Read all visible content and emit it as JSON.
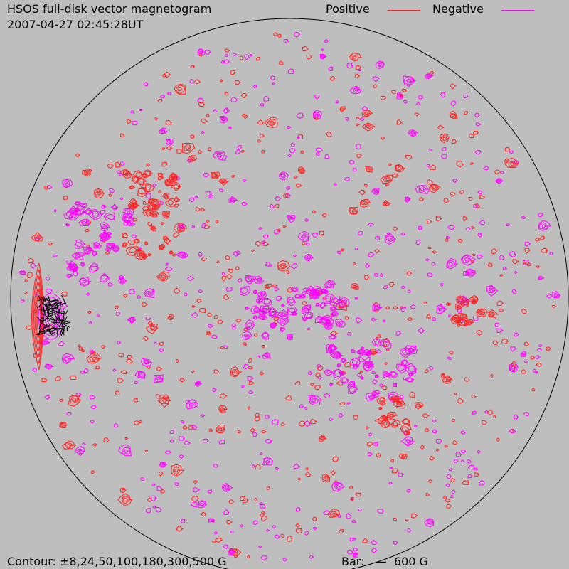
{
  "header": {
    "title": "HSOS full-disk vector magnetogram",
    "datetime": "2007-04-27 02:45:28UT"
  },
  "legend": {
    "positive_label": "Positive",
    "negative_label": "Negative",
    "positive_color": "#ff2020",
    "negative_color": "#ff00ff"
  },
  "footer": {
    "contour_text": "Contour: ±8,24,50,100,180,300,500 G",
    "bar_text": "Bar:   —  600 G"
  },
  "colors": {
    "background": "#bebebe",
    "limb": "#000000",
    "transverse": "#000000"
  }
}
